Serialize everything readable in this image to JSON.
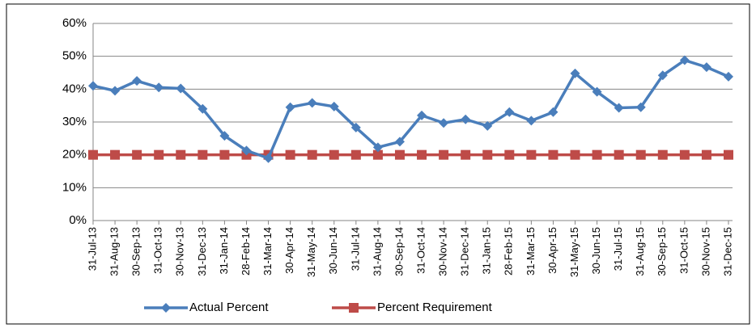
{
  "chart_data": {
    "type": "line",
    "categories": [
      "31-Jul-13",
      "31-Aug-13",
      "30-Sep-13",
      "31-Oct-13",
      "30-Nov-13",
      "31-Dec-13",
      "31-Jan-14",
      "28-Feb-14",
      "31-Mar-14",
      "30-Apr-14",
      "31-May-14",
      "30-Jun-14",
      "31-Jul-14",
      "31-Aug-14",
      "30-Sep-14",
      "31-Oct-14",
      "30-Nov-14",
      "31-Dec-14",
      "31-Jan-15",
      "28-Feb-15",
      "31-Mar-15",
      "30-Apr-15",
      "31-May-15",
      "30-Jun-15",
      "31-Jul-15",
      "31-Aug-15",
      "30-Sep-15",
      "31-Oct-15",
      "30-Nov-15",
      "31-Dec-15"
    ],
    "series": [
      {
        "name": "Actual Percent",
        "color": "#4a7ebb",
        "marker": "diamond",
        "values": [
          41,
          39.5,
          42.5,
          40.5,
          40.2,
          34,
          25.8,
          21.3,
          19,
          34.5,
          35.8,
          34.7,
          28.3,
          22.3,
          24,
          32,
          29.7,
          30.8,
          28.8,
          33,
          30.4,
          33,
          44.8,
          39.2,
          34.3,
          34.5,
          44.2,
          48.8,
          46.7,
          43.8
        ]
      },
      {
        "name": "Percent Requirement",
        "color": "#be4b48",
        "marker": "square",
        "values": [
          20,
          20,
          20,
          20,
          20,
          20,
          20,
          20,
          20,
          20,
          20,
          20,
          20,
          20,
          20,
          20,
          20,
          20,
          20,
          20,
          20,
          20,
          20,
          20,
          20,
          20,
          20,
          20,
          20,
          20
        ]
      }
    ],
    "ylim": [
      0,
      60
    ],
    "yticks": [
      {
        "value": 0,
        "label": "0%"
      },
      {
        "value": 10,
        "label": "10%"
      },
      {
        "value": 20,
        "label": "20%"
      },
      {
        "value": 30,
        "label": "30%"
      },
      {
        "value": 40,
        "label": "40%"
      },
      {
        "value": 50,
        "label": "50%"
      },
      {
        "value": 60,
        "label": "60%"
      }
    ],
    "grid": true,
    "legend": "bottom"
  }
}
